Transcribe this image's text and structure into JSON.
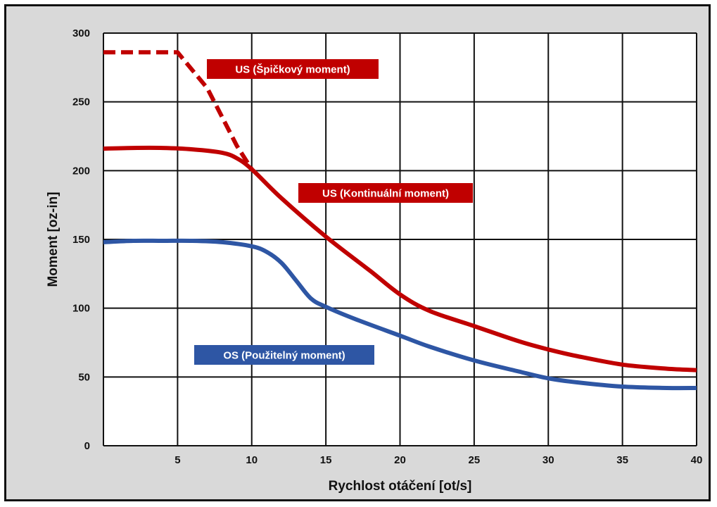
{
  "chart_data": {
    "type": "line",
    "xlabel": "Rychlost otáčení [ot/s]",
    "ylabel": "Moment [oz-in]",
    "xlim": [
      0,
      40
    ],
    "ylim": [
      0,
      300
    ],
    "xticks": [
      5,
      10,
      15,
      20,
      25,
      30,
      35,
      40
    ],
    "yticks": [
      0,
      50,
      100,
      150,
      200,
      250,
      300
    ],
    "grid": true,
    "series": [
      {
        "name": "US (Špičkový moment)",
        "color": "#c00000",
        "style": "dashed",
        "points": [
          [
            0,
            286
          ],
          [
            5,
            286
          ],
          [
            7,
            260
          ],
          [
            9,
            218
          ],
          [
            10,
            201
          ]
        ]
      },
      {
        "name": "US (Kontinuální moment)",
        "color": "#c00000",
        "style": "solid",
        "points": [
          [
            0,
            216
          ],
          [
            2,
            216.5
          ],
          [
            4,
            216.5
          ],
          [
            6,
            215.5
          ],
          [
            8,
            213
          ],
          [
            9,
            209
          ],
          [
            10,
            201
          ],
          [
            12,
            180
          ],
          [
            15,
            152
          ],
          [
            18,
            127
          ],
          [
            20,
            110
          ],
          [
            22,
            98
          ],
          [
            25,
            87
          ],
          [
            28,
            76
          ],
          [
            30,
            70
          ],
          [
            32,
            65
          ],
          [
            35,
            59
          ],
          [
            38,
            56
          ],
          [
            40,
            55
          ]
        ]
      },
      {
        "name": "OS (Použitelný moment)",
        "color": "#2e56a4",
        "style": "solid",
        "points": [
          [
            0,
            148
          ],
          [
            2,
            149
          ],
          [
            4,
            149
          ],
          [
            6,
            149
          ],
          [
            8,
            148
          ],
          [
            10,
            145
          ],
          [
            11,
            141
          ],
          [
            12,
            133
          ],
          [
            13,
            120
          ],
          [
            14,
            107
          ],
          [
            15,
            101
          ],
          [
            17,
            92
          ],
          [
            20,
            80
          ],
          [
            22,
            72
          ],
          [
            25,
            62
          ],
          [
            28,
            54
          ],
          [
            30,
            49
          ],
          [
            32,
            46
          ],
          [
            35,
            43
          ],
          [
            38,
            42
          ],
          [
            40,
            42
          ]
        ]
      }
    ]
  }
}
